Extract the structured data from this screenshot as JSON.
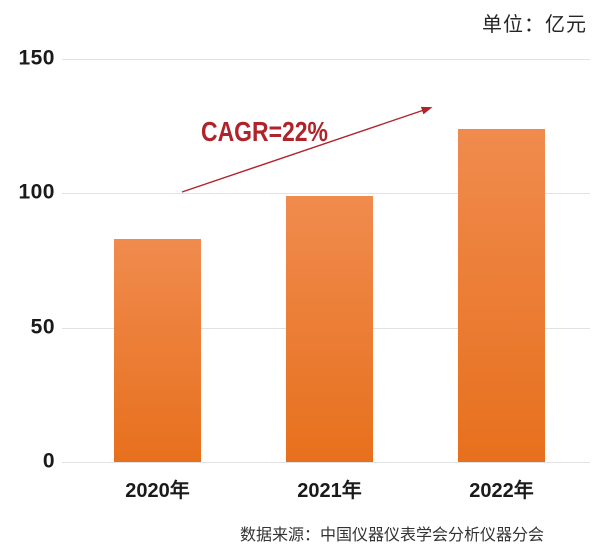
{
  "unit_label": "单位：亿元",
  "annotation_label": "CAGR=22%",
  "source_text": "数据来源：中国仪器仪表学会分析仪器分会",
  "chart_data": {
    "type": "bar",
    "categories": [
      "2020年",
      "2021年",
      "2022年"
    ],
    "values": [
      83,
      99,
      124
    ],
    "title": "",
    "xlabel": "",
    "ylabel": "",
    "unit": "亿元",
    "ylim": [
      0,
      150
    ],
    "yticks": [
      150,
      100,
      50,
      0
    ],
    "grid": true,
    "legend": "none",
    "annotation": "CAGR=22%"
  },
  "colors": {
    "bar_gradient_top": "#F08B4E",
    "bar_gradient_bottom": "#E7701D",
    "annotation": "#B0232A",
    "gridline": "#E2E2E2",
    "axis_text": "#1A1A1A",
    "unit_text": "#262626",
    "source_text": "#333333"
  }
}
